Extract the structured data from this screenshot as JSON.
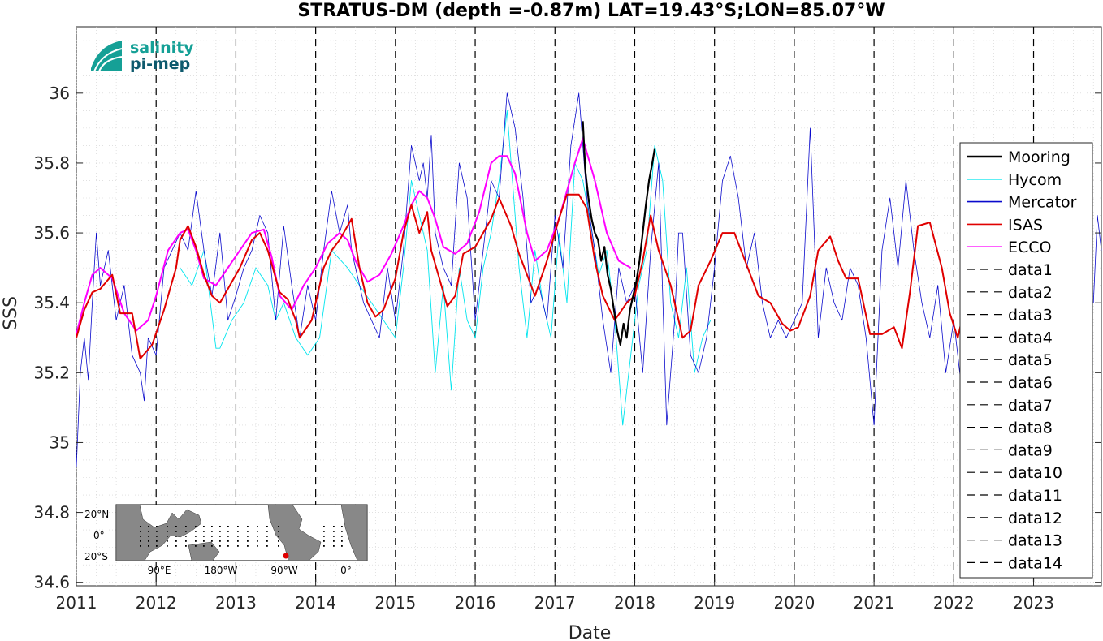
{
  "chart_data": {
    "type": "line",
    "title": "STRATUS-DM (depth =-0.87m) LAT=19.43°S;LON=85.07°W",
    "xlabel": "Date",
    "ylabel": "SSS",
    "xlim": [
      2011.0,
      2023.85
    ],
    "ylim": [
      34.59,
      36.19
    ],
    "x_ticks": [
      "2011",
      "2012",
      "2013",
      "2014",
      "2015",
      "2016",
      "2017",
      "2018",
      "2019",
      "2020",
      "2021",
      "2022",
      "2023"
    ],
    "y_ticks": [
      "34.6",
      "34.8",
      "35",
      "35.2",
      "35.4",
      "35.6",
      "35.8",
      "36"
    ],
    "grid": "minor dotted",
    "legend_position": "right",
    "vertical_dashed_lines": [
      2012,
      2013,
      2014,
      2015,
      2016,
      2017,
      2018,
      2019,
      2020,
      2021,
      2022,
      2023
    ],
    "series": [
      {
        "name": "Mooring",
        "color": "#000000",
        "x": [
          2017.35,
          2017.38,
          2017.42,
          2017.46,
          2017.5,
          2017.54,
          2017.58,
          2017.62,
          2017.66,
          2017.7,
          2017.74,
          2017.78,
          2017.82,
          2017.86,
          2017.9,
          2017.94,
          2017.98,
          2018.02,
          2018.06,
          2018.1,
          2018.14,
          2018.18,
          2018.22,
          2018.25
        ],
        "y": [
          35.92,
          35.78,
          35.7,
          35.64,
          35.6,
          35.58,
          35.52,
          35.56,
          35.48,
          35.44,
          35.38,
          35.32,
          35.28,
          35.34,
          35.3,
          35.38,
          35.42,
          35.46,
          35.52,
          35.6,
          35.68,
          35.75,
          35.8,
          35.84
        ]
      },
      {
        "name": "Hycom",
        "color": "#00e5ee",
        "x": [
          2012.3,
          2012.45,
          2012.6,
          2012.75,
          2012.8,
          2012.95,
          2013.1,
          2013.25,
          2013.4,
          2013.5,
          2013.6,
          2013.75,
          2013.9,
          2014.05,
          2014.2,
          2014.4,
          2014.55,
          2014.7,
          2014.85,
          2015.0,
          2015.1,
          2015.2,
          2015.3,
          2015.4,
          2015.5,
          2015.6,
          2015.7,
          2015.8,
          2015.9,
          2016.0,
          2016.1,
          2016.2,
          2016.3,
          2016.4,
          2016.5,
          2016.55,
          2016.65,
          2016.75,
          2016.85,
          2016.95,
          2017.05,
          2017.15,
          2017.25,
          2017.35,
          2017.45,
          2017.55,
          2017.65,
          2017.75,
          2017.85,
          2017.95,
          2018.05,
          2018.15,
          2018.25,
          2018.35,
          2018.45,
          2018.55,
          2018.65,
          2018.75,
          2018.85,
          2018.95
        ],
        "y": [
          35.5,
          35.45,
          35.55,
          35.27,
          35.27,
          35.35,
          35.4,
          35.5,
          35.45,
          35.35,
          35.4,
          35.3,
          35.25,
          35.3,
          35.55,
          35.5,
          35.45,
          35.4,
          35.35,
          35.3,
          35.5,
          35.75,
          35.65,
          35.55,
          35.2,
          35.45,
          35.15,
          35.5,
          35.35,
          35.3,
          35.5,
          35.6,
          35.75,
          35.95,
          35.65,
          35.5,
          35.3,
          35.55,
          35.4,
          35.3,
          35.6,
          35.4,
          35.8,
          35.75,
          35.62,
          35.48,
          35.55,
          35.35,
          35.05,
          35.25,
          35.45,
          35.55,
          35.85,
          35.75,
          35.4,
          35.3,
          35.5,
          35.2,
          35.3,
          35.35
        ]
      },
      {
        "name": "Mercator",
        "color": "#0a0acc",
        "x": [
          2011.0,
          2011.05,
          2011.1,
          2011.15,
          2011.2,
          2011.25,
          2011.3,
          2011.35,
          2011.4,
          2011.5,
          2011.6,
          2011.7,
          2011.8,
          2011.85,
          2011.9,
          2012.0,
          2012.1,
          2012.2,
          2012.3,
          2012.4,
          2012.5,
          2012.6,
          2012.7,
          2012.8,
          2012.9,
          2013.0,
          2013.1,
          2013.2,
          2013.3,
          2013.4,
          2013.5,
          2013.6,
          2013.7,
          2013.8,
          2013.9,
          2014.0,
          2014.1,
          2014.2,
          2014.3,
          2014.4,
          2014.45,
          2014.5,
          2014.6,
          2014.7,
          2014.8,
          2014.9,
          2015.0,
          2015.1,
          2015.2,
          2015.3,
          2015.35,
          2015.4,
          2015.45,
          2015.5,
          2015.6,
          2015.7,
          2015.8,
          2015.9,
          2016.0,
          2016.1,
          2016.2,
          2016.3,
          2016.4,
          2016.5,
          2016.6,
          2016.7,
          2016.8,
          2016.9,
          2017.0,
          2017.1,
          2017.2,
          2017.3,
          2017.35,
          2017.4,
          2017.5,
          2017.6,
          2017.7,
          2017.8,
          2017.9,
          2018.0,
          2018.1,
          2018.2,
          2018.3,
          2018.4,
          2018.5,
          2018.55,
          2018.6,
          2018.7,
          2018.8,
          2018.9,
          2019.0,
          2019.1,
          2019.2,
          2019.3,
          2019.4,
          2019.5,
          2019.6,
          2019.7,
          2019.8,
          2019.9,
          2020.0,
          2020.1,
          2020.2,
          2020.3,
          2020.4,
          2020.5,
          2020.6,
          2020.7,
          2020.8,
          2020.9,
          2021.0,
          2021.1,
          2021.2,
          2021.3,
          2021.4,
          2021.5,
          2021.6,
          2021.7,
          2021.8,
          2021.9,
          2022.0,
          2022.1,
          2023.75,
          2023.8,
          2023.85
        ],
        "y": [
          34.93,
          35.2,
          35.3,
          35.18,
          35.4,
          35.6,
          35.45,
          35.5,
          35.55,
          35.35,
          35.45,
          35.25,
          35.2,
          35.12,
          35.3,
          35.25,
          35.5,
          35.55,
          35.6,
          35.55,
          35.72,
          35.55,
          35.42,
          35.6,
          35.35,
          35.42,
          35.5,
          35.55,
          35.65,
          35.6,
          35.35,
          35.62,
          35.45,
          35.3,
          35.45,
          35.35,
          35.55,
          35.72,
          35.6,
          35.68,
          35.55,
          35.5,
          35.4,
          35.35,
          35.3,
          35.5,
          35.35,
          35.55,
          35.85,
          35.75,
          35.8,
          35.7,
          35.88,
          35.6,
          35.5,
          35.45,
          35.8,
          35.7,
          35.35,
          35.55,
          35.75,
          35.7,
          36.0,
          35.9,
          35.7,
          35.4,
          35.45,
          35.35,
          35.65,
          35.5,
          35.85,
          36.0,
          35.85,
          35.7,
          35.55,
          35.35,
          35.2,
          35.5,
          35.4,
          35.45,
          35.2,
          35.55,
          35.8,
          35.05,
          35.35,
          35.6,
          35.6,
          35.25,
          35.2,
          35.3,
          35.5,
          35.75,
          35.82,
          35.7,
          35.5,
          35.6,
          35.4,
          35.3,
          35.35,
          35.3,
          35.35,
          35.4,
          35.9,
          35.3,
          35.5,
          35.4,
          35.35,
          35.5,
          35.45,
          35.3,
          35.05,
          35.55,
          35.7,
          35.5,
          35.75,
          35.55,
          35.4,
          35.3,
          35.45,
          35.2,
          35.35,
          35.15,
          35.4,
          35.65,
          35.55
        ]
      },
      {
        "name": "ISAS",
        "color": "#e00000",
        "x": [
          2011.0,
          2011.1,
          2011.2,
          2011.3,
          2011.45,
          2011.55,
          2011.7,
          2011.8,
          2011.95,
          2012.1,
          2012.25,
          2012.3,
          2012.4,
          2012.5,
          2012.6,
          2012.7,
          2012.8,
          2012.9,
          2013.05,
          2013.2,
          2013.3,
          2013.4,
          2013.55,
          2013.65,
          2013.75,
          2013.8,
          2013.95,
          2014.1,
          2014.2,
          2014.3,
          2014.45,
          2014.55,
          2014.65,
          2014.75,
          2014.85,
          2015.0,
          2015.1,
          2015.2,
          2015.3,
          2015.4,
          2015.45,
          2015.55,
          2015.65,
          2015.75,
          2015.85,
          2016.0,
          2016.1,
          2016.2,
          2016.3,
          2016.45,
          2016.55,
          2016.65,
          2016.75,
          2016.9,
          2017.05,
          2017.15,
          2017.3,
          2017.4,
          2017.5,
          2017.6,
          2017.75,
          2017.9,
          2018.0,
          2018.1,
          2018.2,
          2018.3,
          2018.45,
          2018.6,
          2018.7,
          2018.8,
          2018.95,
          2019.1,
          2019.25,
          2019.4,
          2019.55,
          2019.7,
          2019.85,
          2019.95,
          2020.05,
          2020.2,
          2020.3,
          2020.45,
          2020.55,
          2020.65,
          2020.8,
          2020.95,
          2021.1,
          2021.25,
          2021.35,
          2021.45,
          2021.55,
          2021.7,
          2021.85,
          2021.95,
          2022.05,
          2022.1
        ],
        "y": [
          35.3,
          35.38,
          35.43,
          35.44,
          35.48,
          35.37,
          35.37,
          35.24,
          35.28,
          35.38,
          35.5,
          35.58,
          35.62,
          35.56,
          35.48,
          35.42,
          35.4,
          35.44,
          35.5,
          35.58,
          35.6,
          35.55,
          35.43,
          35.41,
          35.35,
          35.3,
          35.35,
          35.5,
          35.55,
          35.58,
          35.64,
          35.5,
          35.4,
          35.36,
          35.38,
          35.47,
          35.6,
          35.68,
          35.6,
          35.66,
          35.55,
          35.47,
          35.39,
          35.42,
          35.54,
          35.56,
          35.6,
          35.64,
          35.7,
          35.62,
          35.54,
          35.48,
          35.42,
          35.52,
          35.64,
          35.71,
          35.71,
          35.67,
          35.52,
          35.42,
          35.35,
          35.4,
          35.42,
          35.52,
          35.65,
          35.55,
          35.45,
          35.3,
          35.32,
          35.45,
          35.52,
          35.6,
          35.6,
          35.51,
          35.42,
          35.4,
          35.34,
          35.32,
          35.33,
          35.42,
          35.55,
          35.59,
          35.52,
          35.47,
          35.47,
          35.31,
          35.31,
          35.33,
          35.27,
          35.43,
          35.62,
          35.63,
          35.5,
          35.37,
          35.3,
          35.35
        ]
      },
      {
        "name": "ECCO",
        "color": "#ff00ff",
        "x": [
          2011.0,
          2011.1,
          2011.2,
          2011.3,
          2011.45,
          2011.6,
          2011.75,
          2011.9,
          2012.0,
          2012.15,
          2012.3,
          2012.4,
          2012.5,
          2012.6,
          2012.75,
          2012.9,
          2013.05,
          2013.2,
          2013.35,
          2013.45,
          2013.55,
          2013.7,
          2013.85,
          2014.0,
          2014.15,
          2014.3,
          2014.4,
          2014.5,
          2014.65,
          2014.8,
          2014.95,
          2015.1,
          2015.2,
          2015.3,
          2015.4,
          2015.5,
          2015.6,
          2015.75,
          2015.9,
          2016.05,
          2016.2,
          2016.3,
          2016.4,
          2016.5,
          2016.65,
          2016.75,
          2016.9,
          2017.05,
          2017.15,
          2017.25,
          2017.35,
          2017.5,
          2017.65,
          2017.8,
          2017.95
        ],
        "y": [
          35.31,
          35.4,
          35.48,
          35.5,
          35.47,
          35.37,
          35.32,
          35.35,
          35.42,
          35.55,
          35.6,
          35.61,
          35.55,
          35.47,
          35.45,
          35.5,
          35.55,
          35.6,
          35.61,
          35.53,
          35.42,
          35.38,
          35.45,
          35.5,
          35.57,
          35.6,
          35.58,
          35.52,
          35.46,
          35.48,
          35.54,
          35.62,
          35.68,
          35.72,
          35.7,
          35.64,
          35.56,
          35.54,
          35.57,
          35.66,
          35.8,
          35.82,
          35.82,
          35.77,
          35.6,
          35.52,
          35.55,
          35.64,
          35.72,
          35.8,
          35.87,
          35.75,
          35.6,
          35.52,
          35.5
        ]
      }
    ],
    "extra_legend_entries": [
      "data1",
      "data2",
      "data3",
      "data4",
      "data5",
      "data6",
      "data7",
      "data8",
      "data9",
      "data10",
      "data11",
      "data12",
      "data13",
      "data14"
    ]
  },
  "logo": {
    "line1": "salinity",
    "line2": "pi-mep"
  },
  "inset_map": {
    "lat_labels": [
      "20°N",
      "0°",
      "20°S"
    ],
    "lon_labels": [
      "90°E",
      "180°W",
      "90°W",
      "0°"
    ]
  }
}
